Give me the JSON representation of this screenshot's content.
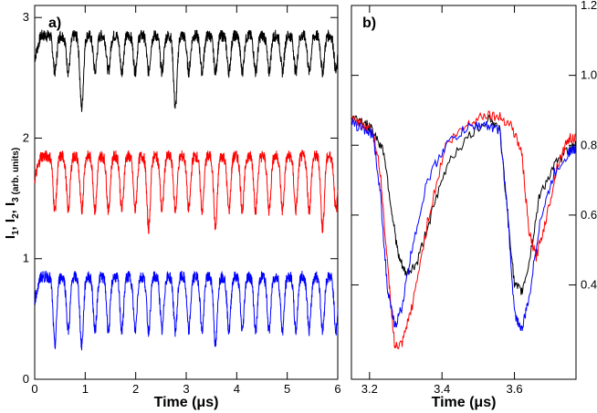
{
  "chart_data": [
    {
      "type": "line",
      "panel_label": "a)",
      "xlabel": "Time (μs)",
      "ylabel": "I1, I2, I3 (arb. units)",
      "ylabel_parts": {
        "i": "I",
        "s1": "1",
        "s2": "2",
        "s3": "3",
        "sep": ", ",
        "units": " (arb. units)"
      },
      "xlim": [
        0,
        6
      ],
      "ylim": [
        0,
        3.1
      ],
      "xticks": [
        0,
        1,
        2,
        3,
        4,
        5,
        6
      ],
      "xtick_labels": [
        "0",
        "1",
        "2",
        "3",
        "4",
        "5",
        "6"
      ],
      "yticks": [
        0,
        1,
        2,
        3
      ],
      "ytick_labels": [
        "0",
        "1",
        "2",
        "3"
      ],
      "series": [
        {
          "name": "I1",
          "color": "#000000",
          "baseline": 2.85,
          "dip_depth": 0.3,
          "deep_dips_at": [
            1.0,
            2.88
          ],
          "deep_min": 2.25
        },
        {
          "name": "I2",
          "color": "#ff0000",
          "baseline": 1.85,
          "dip_depth": 0.45,
          "deep_dips_at": [
            2.2,
            3.5,
            5.6
          ],
          "deep_min": 1.25
        },
        {
          "name": "I3",
          "color": "#0000ff",
          "baseline": 0.85,
          "dip_depth": 0.45,
          "deep_dips_at": [
            0.4,
            1.0,
            3.7
          ],
          "deep_min": 0.28
        }
      ],
      "dip_period_us": 0.265,
      "first_dip_us": 0.4
    },
    {
      "type": "line",
      "panel_label": "b)",
      "xlabel": "Time (μs)",
      "xlim": [
        3.15,
        3.77
      ],
      "ylim": [
        0.13,
        1.2
      ],
      "xticks": [
        3.2,
        3.4,
        3.6
      ],
      "xtick_labels": [
        "3.2",
        "3.4",
        "3.6"
      ],
      "yticks": [
        0.4,
        0.6,
        0.8,
        1.0,
        1.2
      ],
      "ytick_labels": [
        "0.4",
        "0.6",
        "0.8",
        "1.0",
        "1.2"
      ],
      "series": [
        {
          "name": "I1",
          "color": "#000000",
          "x": [
            3.15,
            3.18,
            3.21,
            3.24,
            3.26,
            3.28,
            3.3,
            3.33,
            3.37,
            3.42,
            3.48,
            3.53,
            3.56,
            3.58,
            3.6,
            3.62,
            3.64,
            3.67,
            3.71,
            3.75,
            3.77
          ],
          "y": [
            0.88,
            0.87,
            0.84,
            0.78,
            0.62,
            0.48,
            0.43,
            0.46,
            0.6,
            0.76,
            0.83,
            0.88,
            0.84,
            0.62,
            0.4,
            0.38,
            0.46,
            0.66,
            0.74,
            0.79,
            0.8
          ]
        },
        {
          "name": "I2",
          "color": "#ff0000",
          "x": [
            3.15,
            3.18,
            3.21,
            3.23,
            3.25,
            3.27,
            3.29,
            3.32,
            3.36,
            3.41,
            3.47,
            3.52,
            3.56,
            3.59,
            3.62,
            3.64,
            3.66,
            3.69,
            3.72,
            3.75,
            3.77
          ],
          "y": [
            0.87,
            0.86,
            0.84,
            0.72,
            0.45,
            0.22,
            0.23,
            0.35,
            0.58,
            0.8,
            0.86,
            0.89,
            0.88,
            0.86,
            0.78,
            0.55,
            0.48,
            0.6,
            0.75,
            0.82,
            0.82
          ]
        },
        {
          "name": "I3",
          "color": "#0000ff",
          "x": [
            3.15,
            3.18,
            3.21,
            3.23,
            3.25,
            3.27,
            3.29,
            3.32,
            3.36,
            3.41,
            3.47,
            3.52,
            3.56,
            3.58,
            3.6,
            3.62,
            3.64,
            3.67,
            3.71,
            3.75,
            3.77
          ],
          "y": [
            0.86,
            0.85,
            0.83,
            0.66,
            0.38,
            0.28,
            0.34,
            0.52,
            0.7,
            0.8,
            0.85,
            0.86,
            0.84,
            0.62,
            0.32,
            0.27,
            0.36,
            0.58,
            0.72,
            0.78,
            0.79
          ]
        }
      ]
    }
  ]
}
